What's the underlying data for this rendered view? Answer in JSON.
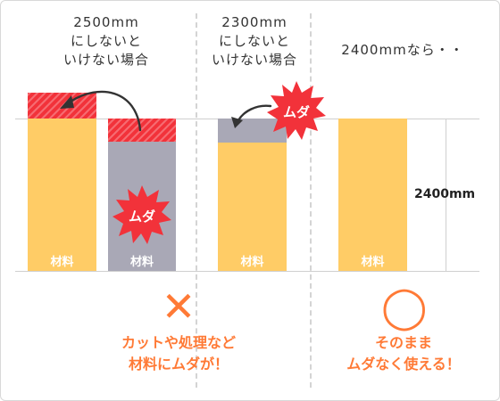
{
  "notes": {
    "case1": [
      "2500mm",
      "にしないと",
      "いけない場合"
    ],
    "case2": [
      "2300mm",
      "にしないと",
      "いけない場合"
    ],
    "case3": "2400mmなら・・"
  },
  "bars": {
    "material_label": "材料",
    "length_label": "2400mm"
  },
  "waste_burst": "ムダ",
  "verdicts": {
    "bad_symbol": "✕",
    "bad_lines": [
      "カットや処理など",
      "材料にムダが！"
    ],
    "good_symbol": "◯",
    "good_lines": [
      "そのまま",
      "ムダなく使える！"
    ]
  },
  "colors": {
    "material": "#ffcc66",
    "cut_excess": "#f2323a",
    "wasted_offcut": "#a9a8b6",
    "accent": "#ff7a36",
    "arrow": "#333333"
  }
}
